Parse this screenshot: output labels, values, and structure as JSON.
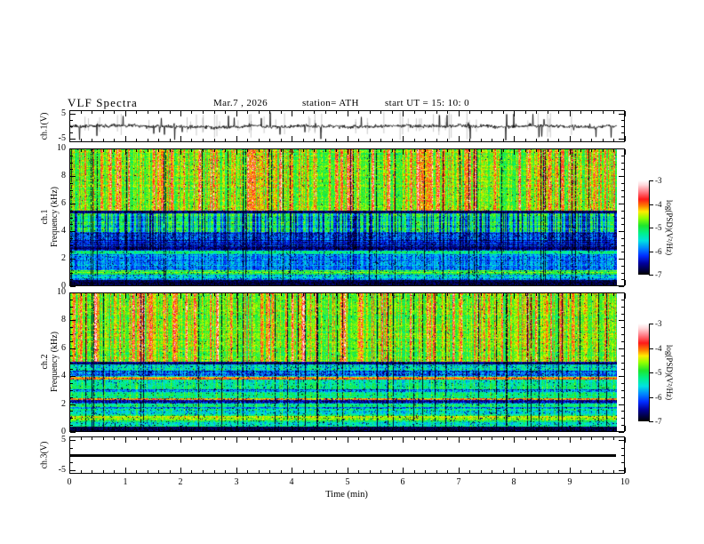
{
  "header": {
    "title": "VLF Spectra",
    "date": "Mar.7 , 2026",
    "station": "station= ATH",
    "start_ut": "start UT =  15: 10: 0"
  },
  "xaxis": {
    "label": "Time (min)",
    "tick_labels": [
      "0",
      "1",
      "2",
      "3",
      "4",
      "5",
      "6",
      "7",
      "8",
      "9",
      "10"
    ],
    "range_min": [
      0,
      10
    ]
  },
  "panels": {
    "ch1_wave": {
      "ylabel": "ch.1(V)",
      "ytick_labels": [
        "5",
        "-5"
      ]
    },
    "ch1_spec": {
      "ylabel_line1": "ch.1",
      "ylabel_line2": "Frequency (kHz)",
      "ytick_labels": [
        "10",
        "8",
        "6",
        "4",
        "2",
        "0"
      ]
    },
    "ch2_spec": {
      "ylabel_line1": "ch.2",
      "ylabel_line2": "Frequency (kHz)",
      "ytick_labels": [
        "10",
        "8",
        "6",
        "4",
        "2",
        "0"
      ]
    },
    "ch3_wave": {
      "ylabel": "ch.3(V)",
      "ytick_labels": [
        "5",
        "-5"
      ]
    }
  },
  "colorbar": {
    "label": "log(PSD)(V²/Hz)",
    "tick_labels": [
      "-3",
      "-4",
      "-5",
      "-6",
      "-7"
    ],
    "stops": [
      [
        0.0,
        255,
        255,
        255
      ],
      [
        0.05,
        255,
        215,
        218
      ],
      [
        0.12,
        255,
        125,
        135
      ],
      [
        0.2,
        255,
        25,
        25
      ],
      [
        0.27,
        255,
        125,
        0
      ],
      [
        0.33,
        255,
        235,
        0
      ],
      [
        0.4,
        145,
        255,
        0
      ],
      [
        0.48,
        30,
        230,
        45
      ],
      [
        0.56,
        0,
        240,
        140
      ],
      [
        0.64,
        0,
        225,
        225
      ],
      [
        0.72,
        0,
        135,
        255
      ],
      [
        0.8,
        0,
        45,
        255
      ],
      [
        0.88,
        0,
        0,
        155
      ],
      [
        1.0,
        0,
        0,
        0
      ]
    ]
  },
  "chart_data": {
    "type": "heatmap",
    "title": "VLF Spectra",
    "date": "Mar.7 , 2026",
    "station": "ATH",
    "start_ut": "15:10:0",
    "time_axis": {
      "label": "Time (min)",
      "range": [
        0,
        10
      ],
      "data_end": 9.84,
      "minor_step": 0.2
    },
    "colormap": {
      "label": "log(PSD)(V²/Hz)",
      "range": [
        -3,
        -7
      ]
    },
    "band_format": [
      "f_top_khz",
      "f_bottom_khz",
      "mean_log_psd",
      "noise",
      "row_var",
      "speckle_prob",
      "hot_streak_gain",
      "blue_streak_gain",
      "green_streak_gain"
    ],
    "panels": [
      {
        "id": "ch1_wave",
        "type": "line",
        "ylabel": "ch.1(V)",
        "yrange": [
          -6.25,
          6.25
        ],
        "mean_V": 0,
        "noise_V": 0.6,
        "spikes_V": 5,
        "description": "noisy broadband voltage trace at 0 V with impulsive spikes reaching about +/-5 V"
      },
      {
        "id": "ch1_spec",
        "type": "heatmap",
        "ylabel": "ch.1 Frequency (kHz)",
        "yrange": [
          0,
          10
        ],
        "streaks": {
          "dark_col_prob": 0.045,
          "blue_col_prob": 0.45,
          "green_col_prob": 0.0,
          "seed": 1234
        },
        "bands": [
          [
            10.0,
            5.5,
            -4.85,
            0.3,
            0.15,
            0.01,
            0.75,
            0.12,
            0
          ],
          [
            5.5,
            5.35,
            -6.6,
            0.3,
            0.2,
            0.1,
            0,
            0.2,
            0
          ],
          [
            5.35,
            3.95,
            -5.05,
            0.3,
            0.25,
            0.02,
            0.1,
            1.0,
            0
          ],
          [
            3.95,
            3.3,
            -6.05,
            0.35,
            0.35,
            0.12,
            0,
            0.5,
            0
          ],
          [
            3.3,
            2.55,
            -6.3,
            0.3,
            0.35,
            0.15,
            0,
            0.3,
            0
          ],
          [
            2.55,
            2.35,
            -5.1,
            0.25,
            0.2,
            0.05,
            0,
            0.2,
            0
          ],
          [
            2.35,
            1.15,
            -5.75,
            0.3,
            0.25,
            0.06,
            0,
            0.3,
            0
          ],
          [
            1.15,
            0.8,
            -4.8,
            0.3,
            0.3,
            0.08,
            0,
            0.1,
            0
          ],
          [
            0.8,
            0.4,
            -5.6,
            0.3,
            0.25,
            0.08,
            0,
            0.2,
            0
          ],
          [
            0.4,
            0.0,
            -6.8,
            0.25,
            0.2,
            0.3,
            0,
            0,
            0
          ]
        ]
      },
      {
        "id": "ch2_spec",
        "type": "heatmap",
        "ylabel": "ch.2 Frequency (kHz)",
        "yrange": [
          0,
          10
        ],
        "streaks": {
          "dark_col_prob": 0.05,
          "blue_col_prob": 0.3,
          "green_col_prob": 0.14,
          "seed": 987
        },
        "bands": [
          [
            10.0,
            5.05,
            -4.85,
            0.3,
            0.15,
            0.01,
            0.75,
            0.15,
            0
          ],
          [
            5.05,
            4.9,
            -6.4,
            0.3,
            0.2,
            0.1,
            0,
            0.3,
            0
          ],
          [
            4.9,
            4.45,
            -5.4,
            0.35,
            0.25,
            0.06,
            0,
            0.4,
            0.5
          ],
          [
            4.45,
            4.0,
            -6.0,
            0.4,
            0.3,
            0.12,
            0,
            0.4,
            0.5
          ],
          [
            4.0,
            3.95,
            -5.5,
            0.3,
            0.2,
            0.05,
            0,
            0.2,
            0.5
          ],
          [
            3.95,
            3.78,
            -4.0,
            0.35,
            0.3,
            0.08,
            0,
            0,
            0
          ],
          [
            3.78,
            3.05,
            -5.25,
            0.3,
            0.2,
            0.04,
            0,
            0.3,
            1
          ],
          [
            3.05,
            2.9,
            -5.9,
            0.35,
            0.3,
            0.1,
            0,
            0.3,
            1
          ],
          [
            2.9,
            2.45,
            -5.15,
            0.25,
            0.2,
            0.03,
            0,
            0.2,
            1
          ],
          [
            2.45,
            2.3,
            -4.4,
            0.5,
            0.3,
            0.1,
            0,
            0,
            0
          ],
          [
            2.3,
            2.05,
            -6.2,
            0.35,
            0.3,
            0.15,
            0,
            0.2,
            1
          ],
          [
            2.05,
            1.78,
            -5.15,
            0.25,
            0.2,
            0.05,
            0,
            0.2,
            1
          ],
          [
            1.78,
            1.62,
            -5.95,
            0.3,
            0.3,
            0.1,
            0,
            0.2,
            1
          ],
          [
            1.62,
            1.1,
            -5.35,
            0.3,
            0.3,
            0.06,
            0,
            0.2,
            1
          ],
          [
            1.1,
            0.82,
            -4.7,
            0.3,
            0.3,
            0.06,
            0,
            0.1,
            0.5
          ],
          [
            0.82,
            0.38,
            -5.3,
            0.3,
            0.25,
            0.06,
            0,
            0.2,
            0.5
          ],
          [
            0.38,
            0.0,
            -6.8,
            0.3,
            0.2,
            0.3,
            0,
            0,
            0
          ]
        ]
      },
      {
        "id": "ch3_wave",
        "type": "line",
        "ylabel": "ch.3(V)",
        "yrange": [
          -6.25,
          6.25
        ],
        "value_V": 0,
        "description": "constant thick flat line at 0 V for full record length"
      }
    ]
  }
}
